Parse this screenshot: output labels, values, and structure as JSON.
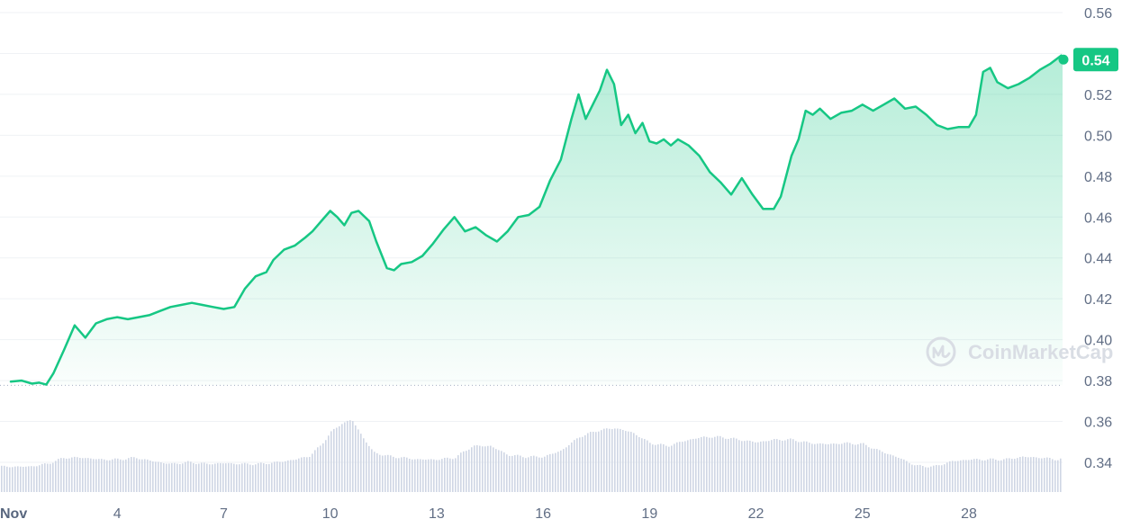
{
  "watermark": "CoinMarketCap",
  "colors": {
    "line": "#16c784",
    "grid": "#eff2f5",
    "volume": "#cfd6e4",
    "axis_text": "#616e85",
    "badge": "#16c784"
  },
  "chart_data": {
    "type": "area",
    "current_price_label": "0.54",
    "baseline": 0.3777,
    "ylim": [
      0.33,
      0.57
    ],
    "y_ticks": [
      "0.56",
      "0.54",
      "0.52",
      "0.50",
      "0.48",
      "0.46",
      "0.44",
      "0.42",
      "0.40",
      "0.38",
      "0.36",
      "0.34"
    ],
    "y_tick_values": [
      0.56,
      0.54,
      0.52,
      0.5,
      0.48,
      0.46,
      0.44,
      0.42,
      0.4,
      0.38,
      0.36,
      0.34
    ],
    "x_ticks": [
      "Nov",
      "4",
      "7",
      "10",
      "13",
      "16",
      "19",
      "22",
      "25",
      "28"
    ],
    "x_tick_days": [
      1,
      4,
      7,
      10,
      13,
      16,
      19,
      22,
      25,
      28
    ],
    "xlim_days": [
      1,
      31.4
    ],
    "series": [
      {
        "type": "line",
        "x": [
          1.0,
          1.3,
          1.6,
          1.8,
          2.0,
          2.2,
          2.5,
          2.8,
          3.1,
          3.4,
          3.7,
          4.0,
          4.3,
          4.6,
          4.9,
          5.2,
          5.5,
          5.8,
          6.1,
          6.4,
          6.7,
          7.0,
          7.3,
          7.6,
          7.9,
          8.2,
          8.4,
          8.7,
          9.0,
          9.3,
          9.5,
          9.8,
          10.0,
          10.2,
          10.4,
          10.6,
          10.8,
          11.1,
          11.3,
          11.6,
          11.8,
          12.0,
          12.3,
          12.6,
          12.9,
          13.2,
          13.5,
          13.8,
          14.1,
          14.4,
          14.7,
          15.0,
          15.3,
          15.6,
          15.9,
          16.2,
          16.5,
          16.8,
          17.0,
          17.2,
          17.4,
          17.6,
          17.8,
          18.0,
          18.2,
          18.4,
          18.6,
          18.8,
          19.0,
          19.2,
          19.4,
          19.6,
          19.8,
          20.1,
          20.4,
          20.7,
          21.0,
          21.3,
          21.6,
          21.9,
          22.2,
          22.5,
          22.7,
          23.0,
          23.2,
          23.4,
          23.6,
          23.8,
          24.1,
          24.4,
          24.7,
          25.0,
          25.3,
          25.6,
          25.9,
          26.2,
          26.5,
          26.8,
          27.1,
          27.4,
          27.7,
          28.0,
          28.2,
          28.4,
          28.6,
          28.8,
          29.1,
          29.4,
          29.7,
          30.0,
          30.3,
          30.6,
          30.9,
          31.1,
          31.3
        ],
        "values": [
          0.3795,
          0.38,
          0.3785,
          0.379,
          0.378,
          0.3835,
          0.395,
          0.407,
          0.401,
          0.408,
          0.41,
          0.411,
          0.41,
          0.411,
          0.412,
          0.414,
          0.416,
          0.417,
          0.418,
          0.417,
          0.416,
          0.415,
          0.416,
          0.425,
          0.431,
          0.433,
          0.439,
          0.444,
          0.446,
          0.45,
          0.453,
          0.459,
          0.463,
          0.46,
          0.456,
          0.462,
          0.463,
          0.458,
          0.448,
          0.435,
          0.434,
          0.437,
          0.438,
          0.441,
          0.447,
          0.454,
          0.46,
          0.453,
          0.455,
          0.451,
          0.448,
          0.453,
          0.46,
          0.461,
          0.465,
          0.478,
          0.488,
          0.508,
          0.52,
          0.508,
          0.515,
          0.522,
          0.532,
          0.525,
          0.505,
          0.51,
          0.501,
          0.506,
          0.497,
          0.496,
          0.498,
          0.495,
          0.498,
          0.495,
          0.49,
          0.482,
          0.477,
          0.471,
          0.479,
          0.471,
          0.464,
          0.464,
          0.47,
          0.49,
          0.498,
          0.512,
          0.51,
          0.513,
          0.508,
          0.511,
          0.512,
          0.515,
          0.512,
          0.515,
          0.518,
          0.513,
          0.514,
          0.51,
          0.505,
          0.503,
          0.504,
          0.504,
          0.51,
          0.531,
          0.533,
          0.526,
          0.523,
          0.525,
          0.528,
          0.532,
          0.535,
          0.539,
          0.538,
          0.5375,
          0.537
        ]
      },
      {
        "type": "bar",
        "x": [
          1.0,
          1.5,
          2.0,
          2.5,
          3.0,
          3.5,
          4.0,
          4.5,
          5.0,
          5.5,
          6.0,
          6.5,
          7.0,
          7.5,
          8.0,
          8.5,
          9.0,
          9.4,
          9.7,
          10.0,
          10.3,
          10.6,
          10.9,
          11.2,
          11.6,
          12.0,
          12.5,
          13.0,
          13.5,
          14.0,
          14.5,
          15.0,
          15.5,
          16.0,
          16.5,
          17.0,
          17.5,
          18.0,
          18.5,
          19.0,
          19.5,
          20.0,
          20.5,
          21.0,
          21.5,
          22.0,
          22.5,
          23.0,
          23.5,
          24.0,
          24.5,
          25.0,
          25.5,
          26.0,
          26.5,
          27.0,
          27.5,
          28.0,
          28.5,
          29.0,
          29.5,
          30.0,
          30.5,
          31.0,
          31.3
        ],
        "values": [
          0.3379,
          0.3379,
          0.3392,
          0.3423,
          0.3423,
          0.3414,
          0.3414,
          0.3423,
          0.3405,
          0.3392,
          0.3401,
          0.3392,
          0.3396,
          0.3392,
          0.3392,
          0.3401,
          0.3414,
          0.3431,
          0.348,
          0.3546,
          0.359,
          0.3608,
          0.3524,
          0.3449,
          0.3431,
          0.3423,
          0.3414,
          0.3414,
          0.3423,
          0.348,
          0.348,
          0.3436,
          0.3427,
          0.3427,
          0.3458,
          0.3524,
          0.3555,
          0.3568,
          0.3546,
          0.3494,
          0.348,
          0.3507,
          0.3524,
          0.3524,
          0.3511,
          0.3498,
          0.3511,
          0.3511,
          0.3494,
          0.3489,
          0.3494,
          0.3489,
          0.3454,
          0.3423,
          0.3383,
          0.3379,
          0.3405,
          0.3414,
          0.3414,
          0.3414,
          0.3427,
          0.3423,
          0.3414,
          0.3436,
          0.3441
        ]
      }
    ]
  }
}
